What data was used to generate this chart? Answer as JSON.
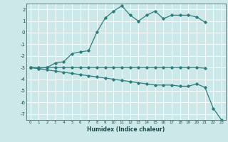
{
  "xlabel": "Humidex (Indice chaleur)",
  "bg_color": "#cce8e8",
  "grid_color": "#ffffff",
  "line_color": "#2d7d7d",
  "x_values": [
    0,
    1,
    2,
    3,
    4,
    5,
    6,
    7,
    8,
    9,
    10,
    11,
    12,
    13,
    14,
    15,
    16,
    17,
    18,
    19,
    20,
    21,
    22,
    23
  ],
  "line1": [
    -3.0,
    -3.05,
    -3.0,
    -2.6,
    -2.5,
    -1.8,
    -1.65,
    -1.55,
    0.05,
    1.25,
    1.85,
    2.3,
    1.5,
    1.0,
    1.5,
    1.85,
    1.2,
    1.5,
    1.5,
    1.5,
    1.35,
    0.9,
    null,
    null
  ],
  "line2": [
    -3.0,
    -3.0,
    -3.0,
    -3.0,
    -3.0,
    -3.0,
    -3.0,
    -3.0,
    -3.0,
    -3.0,
    -3.0,
    -3.0,
    -3.0,
    -3.0,
    -3.0,
    -3.0,
    -3.0,
    -3.0,
    -3.0,
    -3.0,
    -3.0,
    -3.05,
    null,
    null
  ],
  "line3": [
    -3.0,
    -3.1,
    -3.2,
    -3.3,
    -3.4,
    -3.5,
    -3.6,
    -3.7,
    -3.8,
    -3.9,
    -4.0,
    -4.1,
    -4.2,
    -4.3,
    -4.4,
    -4.5,
    -4.5,
    -4.5,
    -4.6,
    -4.6,
    -4.4,
    -4.7,
    -6.5,
    -7.5
  ],
  "ylim": [
    -7.5,
    2.5
  ],
  "xlim": [
    -0.5,
    23.5
  ],
  "yticks": [
    2,
    1,
    0,
    -1,
    -2,
    -3,
    -4,
    -5,
    -6,
    -7
  ],
  "xticks": [
    0,
    1,
    2,
    3,
    4,
    5,
    6,
    7,
    8,
    9,
    10,
    11,
    12,
    13,
    14,
    15,
    16,
    17,
    18,
    19,
    20,
    21,
    22,
    23
  ]
}
